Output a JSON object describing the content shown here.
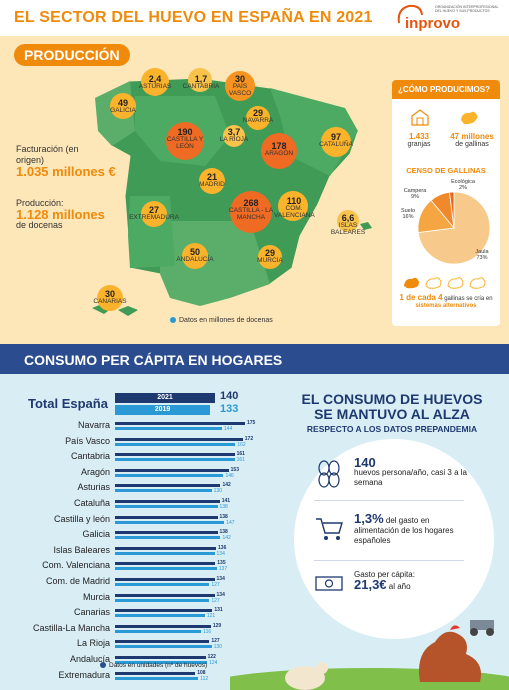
{
  "header": {
    "title": "EL SECTOR DEL HUEVO EN ESPAÑA EN 2021",
    "logo_brand": "inprovo",
    "logo_org": "ORGANIZACIÓN INTERPROFESIONAL DEL HUEVO Y SUS PRODUCTOS"
  },
  "production": {
    "tag": "PRODUCCIÓN",
    "facturacion_label": "Facturación (en origen)",
    "facturacion_value": "1.035 millones €",
    "produccion_label": "Producción:",
    "produccion_value": "1.128 millones",
    "produccion_unit": "de docenas",
    "map_note": "Datos en millones de docenas",
    "regions": [
      {
        "name": "ASTURIAS",
        "value": "2,4"
      },
      {
        "name": "CANTABRIA",
        "value": "1,7"
      },
      {
        "name": "PAÍS VASCO",
        "value": "30"
      },
      {
        "name": "GALICIA",
        "value": "49"
      },
      {
        "name": "NAVARRA",
        "value": "29"
      },
      {
        "name": "CASTILLA Y LEÓN",
        "value": "190"
      },
      {
        "name": "LA RIOJA",
        "value": "3,7"
      },
      {
        "name": "ARAGÓN",
        "value": "178"
      },
      {
        "name": "CATALUÑA",
        "value": "97"
      },
      {
        "name": "MADRID",
        "value": "21"
      },
      {
        "name": "EXTREMADURA",
        "value": "27"
      },
      {
        "name": "CASTILLA - LA MANCHA",
        "value": "268"
      },
      {
        "name": "COM. VALENCIANA",
        "value": "110"
      },
      {
        "name": "ISLAS BALEARES",
        "value": "6,6"
      },
      {
        "name": "ANDALUCÍA",
        "value": "50"
      },
      {
        "name": "MURCIA",
        "value": "29"
      },
      {
        "name": "CANARIAS",
        "value": "30"
      }
    ]
  },
  "como_producimos": {
    "title": "¿CÓMO PRODUCIMOS?",
    "granjas_value": "1.433",
    "granjas_label": "granjas",
    "gallinas_value": "47 millones",
    "gallinas_label": "de gallinas",
    "census_title": "CENSO DE GALLINAS",
    "census": [
      {
        "name": "Ecológica",
        "pct": "2%",
        "value": 2
      },
      {
        "name": "Campera",
        "pct": "9%",
        "value": 9
      },
      {
        "name": "Suelo",
        "pct": "16%",
        "value": 16
      },
      {
        "name": "Jaula",
        "pct": "73%",
        "value": 73
      }
    ],
    "alt_prefix": "1 de cada 4",
    "alt_mid": "gallinas se cría en",
    "alt_highlight": "sistemas alternativos"
  },
  "consumo": {
    "tag": "CONSUMO PER CÁPITA EN HOGARES",
    "total_label": "Total España",
    "year_2021": "2021",
    "year_2019": "2019",
    "total_2021": "140",
    "total_2019": "133",
    "legend_note": "Datos en unidades (nº de huevos)",
    "headline_1": "EL CONSUMO DE HUEVOS",
    "headline_2": "SE MANTUVO AL ALZA",
    "headline_3": "RESPECTO A LOS DATOS PREPANDEMIA",
    "stat1_big": "140",
    "stat1_text": "huevos persona/año, casi 3 a la semana",
    "stat2_big": "1,3%",
    "stat2_text": "del gasto en alimentación de los hogares españoles",
    "stat3_label": "Gasto per cápita:",
    "stat3_big": "21,3€",
    "stat3_unit": "al año"
  },
  "chart_data": {
    "type": "bar",
    "categories": [
      "Navarra",
      "País Vasco",
      "Cantabria",
      "Aragón",
      "Asturias",
      "Cataluña",
      "Castilla y león",
      "Galicia",
      "Islas Baleares",
      "Com. Valenciana",
      "Com. de Madrid",
      "Murcia",
      "Canarias",
      "Castilla-La Mancha",
      "La Rioja",
      "Andalucía",
      "Extremadura"
    ],
    "series": [
      {
        "name": "2021",
        "values": [
          175,
          172,
          161,
          153,
          142,
          141,
          138,
          138,
          136,
          135,
          134,
          134,
          131,
          129,
          127,
          122,
          108
        ]
      },
      {
        "name": "2019",
        "values": [
          144,
          162,
          161,
          146,
          130,
          138,
          147,
          142,
          134,
          137,
          127,
          127,
          121,
          116,
          130,
          124,
          112
        ]
      }
    ],
    "xlim": [
      0,
      180
    ]
  }
}
